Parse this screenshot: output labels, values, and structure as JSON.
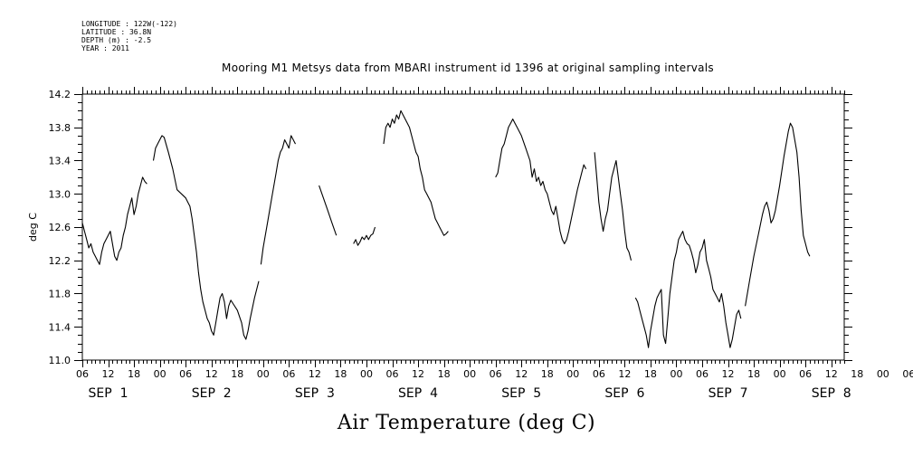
{
  "meta": {
    "longitude": "LONGITUDE : 122W(-122)",
    "latitude": "LATITUDE : 36.8N",
    "depth": "DEPTH (m) : -2.5",
    "year": "YEAR : 2011"
  },
  "chart_data": {
    "type": "line",
    "title": "Mooring M1 Metsys data from MBARI instrument id 1396 at original sampling intervals",
    "xlabel": "Air Temperature (deg C)",
    "ylabel": "deg C",
    "ylim": [
      11.0,
      14.2
    ],
    "yticks": [
      "11.0",
      "11.4",
      "11.8",
      "12.2",
      "12.6",
      "13.0",
      "13.4",
      "13.8",
      "14.2"
    ],
    "xlim": [
      6,
      183
    ],
    "hour_tick_labels": [
      "06",
      "12",
      "18",
      "00",
      "06",
      "12",
      "18",
      "00",
      "06",
      "12",
      "18",
      "00",
      "06",
      "12",
      "18",
      "00",
      "06",
      "12",
      "18",
      "00",
      "06",
      "12",
      "18",
      "00",
      "06",
      "12",
      "18",
      "00",
      "06",
      "12",
      "18",
      "00",
      "06"
    ],
    "day_labels": [
      {
        "text": "SEP  1",
        "hour": 12
      },
      {
        "text": "SEP  2",
        "hour": 36
      },
      {
        "text": "SEP  3",
        "hour": 60
      },
      {
        "text": "SEP  4",
        "hour": 84
      },
      {
        "text": "SEP  5",
        "hour": 108
      },
      {
        "text": "SEP  6",
        "hour": 132
      },
      {
        "text": "SEP  7",
        "hour": 156
      },
      {
        "text": "SEP  8",
        "hour": 180
      }
    ],
    "grid": false,
    "series": [
      {
        "segments": [
          [
            [
              6,
              12.65
            ],
            [
              6.5,
              12.55
            ],
            [
              7,
              12.45
            ],
            [
              7.5,
              12.35
            ],
            [
              8,
              12.4
            ],
            [
              8.5,
              12.3
            ],
            [
              9,
              12.25
            ],
            [
              9.5,
              12.2
            ],
            [
              10,
              12.15
            ],
            [
              10.5,
              12.3
            ],
            [
              11,
              12.4
            ],
            [
              11.5,
              12.45
            ],
            [
              12,
              12.5
            ],
            [
              12.5,
              12.55
            ],
            [
              13,
              12.4
            ],
            [
              13.5,
              12.25
            ],
            [
              14,
              12.2
            ],
            [
              14.5,
              12.3
            ],
            [
              15,
              12.35
            ],
            [
              15.5,
              12.5
            ],
            [
              16,
              12.6
            ],
            [
              16.5,
              12.75
            ],
            [
              17,
              12.85
            ],
            [
              17.5,
              12.95
            ],
            [
              18,
              12.75
            ],
            [
              18.5,
              12.85
            ],
            [
              19,
              13.0
            ],
            [
              19.5,
              13.1
            ],
            [
              20,
              13.2
            ],
            [
              20.5,
              13.15
            ],
            [
              21,
              13.12
            ]
          ],
          [
            [
              22.5,
              13.4
            ],
            [
              23,
              13.55
            ],
            [
              23.5,
              13.6
            ],
            [
              24,
              13.65
            ],
            [
              24.5,
              13.7
            ],
            [
              25,
              13.68
            ],
            [
              26,
              13.5
            ],
            [
              27,
              13.3
            ],
            [
              28,
              13.05
            ],
            [
              29,
              13.0
            ],
            [
              30,
              12.95
            ],
            [
              30.5,
              12.9
            ],
            [
              31,
              12.85
            ],
            [
              31.5,
              12.7
            ],
            [
              32,
              12.5
            ],
            [
              32.5,
              12.3
            ],
            [
              33,
              12.05
            ],
            [
              33.5,
              11.85
            ],
            [
              34,
              11.7
            ],
            [
              34.5,
              11.6
            ],
            [
              35,
              11.5
            ],
            [
              35.5,
              11.45
            ],
            [
              36,
              11.35
            ],
            [
              36.5,
              11.3
            ],
            [
              37,
              11.45
            ],
            [
              37.5,
              11.6
            ],
            [
              38,
              11.75
            ],
            [
              38.5,
              11.8
            ],
            [
              39,
              11.7
            ],
            [
              39.5,
              11.5
            ],
            [
              40,
              11.65
            ],
            [
              40.5,
              11.72
            ],
            [
              41,
              11.68
            ],
            [
              42,
              11.6
            ],
            [
              43,
              11.45
            ],
            [
              43.5,
              11.3
            ],
            [
              44,
              11.25
            ],
            [
              44.5,
              11.35
            ],
            [
              45,
              11.5
            ],
            [
              46,
              11.75
            ],
            [
              47,
              11.95
            ]
          ],
          [
            [
              47.5,
              12.15
            ],
            [
              48,
              12.35
            ],
            [
              49,
              12.65
            ],
            [
              50,
              12.95
            ],
            [
              51,
              13.25
            ],
            [
              51.5,
              13.4
            ],
            [
              52,
              13.5
            ],
            [
              52.5,
              13.55
            ],
            [
              53,
              13.65
            ],
            [
              53.5,
              13.6
            ],
            [
              54,
              13.55
            ],
            [
              54.5,
              13.7
            ],
            [
              55,
              13.65
            ],
            [
              55.5,
              13.6
            ]
          ],
          [
            [
              61,
              13.1
            ],
            [
              62,
              12.95
            ],
            [
              63,
              12.8
            ],
            [
              64,
              12.65
            ],
            [
              65,
              12.5
            ]
          ],
          [
            [
              69,
              12.4
            ],
            [
              69.5,
              12.45
            ],
            [
              70,
              12.38
            ],
            [
              70.5,
              12.42
            ],
            [
              71,
              12.48
            ],
            [
              71.5,
              12.45
            ],
            [
              72,
              12.5
            ],
            [
              72.5,
              12.45
            ],
            [
              73,
              12.5
            ],
            [
              73.5,
              12.52
            ],
            [
              74,
              12.6
            ]
          ],
          [
            [
              76,
              13.6
            ],
            [
              76.5,
              13.8
            ],
            [
              77,
              13.85
            ],
            [
              77.5,
              13.8
            ],
            [
              78,
              13.9
            ],
            [
              78.5,
              13.85
            ],
            [
              79,
              13.95
            ],
            [
              79.5,
              13.9
            ],
            [
              80,
              14.0
            ],
            [
              80.5,
              13.95
            ],
            [
              81,
              13.9
            ],
            [
              81.5,
              13.85
            ],
            [
              82,
              13.8
            ],
            [
              82.5,
              13.7
            ],
            [
              83,
              13.6
            ],
            [
              83.5,
              13.5
            ],
            [
              84,
              13.45
            ],
            [
              84.5,
              13.3
            ],
            [
              85,
              13.2
            ],
            [
              85.5,
              13.05
            ],
            [
              86,
              13.0
            ],
            [
              86.5,
              12.95
            ],
            [
              87,
              12.9
            ],
            [
              87.5,
              12.8
            ],
            [
              88,
              12.7
            ],
            [
              88.5,
              12.65
            ],
            [
              89,
              12.6
            ],
            [
              89.5,
              12.55
            ],
            [
              90,
              12.5
            ],
            [
              90.5,
              12.52
            ],
            [
              91,
              12.55
            ]
          ],
          [
            [
              102,
              13.2
            ],
            [
              102.5,
              13.25
            ],
            [
              103,
              13.4
            ],
            [
              103.5,
              13.55
            ],
            [
              104,
              13.6
            ],
            [
              104.5,
              13.7
            ],
            [
              105,
              13.8
            ],
            [
              105.5,
              13.85
            ],
            [
              106,
              13.9
            ],
            [
              106.5,
              13.85
            ],
            [
              107,
              13.8
            ],
            [
              108,
              13.7
            ],
            [
              109,
              13.55
            ],
            [
              110,
              13.4
            ],
            [
              110.5,
              13.2
            ],
            [
              111,
              13.3
            ],
            [
              111.5,
              13.15
            ],
            [
              112,
              13.2
            ],
            [
              112.5,
              13.1
            ],
            [
              113,
              13.15
            ],
            [
              113.5,
              13.05
            ],
            [
              114,
              13.0
            ],
            [
              114.5,
              12.9
            ],
            [
              115,
              12.8
            ],
            [
              115.5,
              12.75
            ],
            [
              116,
              12.85
            ],
            [
              116.5,
              12.7
            ],
            [
              117,
              12.55
            ],
            [
              117.5,
              12.45
            ],
            [
              118,
              12.4
            ],
            [
              118.5,
              12.45
            ],
            [
              119,
              12.55
            ],
            [
              120,
              12.8
            ],
            [
              121,
              13.05
            ],
            [
              122,
              13.25
            ],
            [
              122.5,
              13.35
            ],
            [
              123,
              13.3
            ]
          ],
          [
            [
              125,
              13.5
            ],
            [
              125.5,
              13.2
            ],
            [
              126,
              12.9
            ],
            [
              126.5,
              12.7
            ],
            [
              127,
              12.55
            ],
            [
              127.5,
              12.7
            ],
            [
              128,
              12.8
            ],
            [
              128.5,
              13.0
            ],
            [
              129,
              13.2
            ],
            [
              129.5,
              13.3
            ],
            [
              130,
              13.4
            ],
            [
              130.5,
              13.2
            ],
            [
              131,
              13.0
            ],
            [
              131.5,
              12.8
            ],
            [
              132,
              12.55
            ],
            [
              132.5,
              12.35
            ],
            [
              133,
              12.3
            ],
            [
              133.5,
              12.2
            ]
          ],
          [
            [
              134.5,
              11.75
            ],
            [
              135,
              11.7
            ],
            [
              135.5,
              11.6
            ],
            [
              136,
              11.5
            ],
            [
              136.5,
              11.4
            ],
            [
              137,
              11.3
            ],
            [
              137.5,
              11.15
            ],
            [
              138,
              11.35
            ],
            [
              138.5,
              11.5
            ],
            [
              139,
              11.65
            ],
            [
              139.5,
              11.75
            ],
            [
              140,
              11.8
            ],
            [
              140.5,
              11.85
            ],
            [
              141,
              11.3
            ],
            [
              141.5,
              11.2
            ],
            [
              142,
              11.5
            ],
            [
              142.5,
              11.8
            ],
            [
              143,
              12.0
            ],
            [
              143.5,
              12.2
            ],
            [
              144,
              12.3
            ],
            [
              144.5,
              12.45
            ],
            [
              145,
              12.5
            ],
            [
              145.5,
              12.55
            ],
            [
              146,
              12.45
            ],
            [
              146.5,
              12.4
            ],
            [
              147,
              12.38
            ],
            [
              147.5,
              12.3
            ],
            [
              148,
              12.2
            ],
            [
              148.5,
              12.05
            ],
            [
              149,
              12.15
            ],
            [
              149.5,
              12.3
            ],
            [
              150,
              12.35
            ],
            [
              150.5,
              12.45
            ],
            [
              151,
              12.2
            ],
            [
              151.5,
              12.1
            ],
            [
              152,
              12.0
            ],
            [
              152.5,
              11.85
            ],
            [
              153,
              11.8
            ],
            [
              153.5,
              11.75
            ],
            [
              154,
              11.7
            ],
            [
              154.5,
              11.8
            ],
            [
              155,
              11.65
            ],
            [
              155.5,
              11.45
            ],
            [
              156,
              11.3
            ],
            [
              156.5,
              11.15
            ],
            [
              157,
              11.25
            ],
            [
              157.5,
              11.4
            ],
            [
              158,
              11.55
            ],
            [
              158.5,
              11.6
            ],
            [
              159,
              11.5
            ]
          ],
          [
            [
              160,
              11.65
            ],
            [
              161,
              11.95
            ],
            [
              162,
              12.25
            ],
            [
              163,
              12.5
            ],
            [
              164,
              12.75
            ],
            [
              164.5,
              12.85
            ],
            [
              165,
              12.9
            ],
            [
              165.5,
              12.8
            ],
            [
              166,
              12.65
            ],
            [
              166.5,
              12.7
            ],
            [
              167,
              12.8
            ],
            [
              168,
              13.1
            ],
            [
              169,
              13.45
            ],
            [
              170,
              13.75
            ],
            [
              170.5,
              13.85
            ],
            [
              171,
              13.8
            ],
            [
              172,
              13.5
            ],
            [
              172.5,
              13.2
            ],
            [
              173,
              12.8
            ],
            [
              173.5,
              12.5
            ],
            [
              174,
              12.4
            ],
            [
              174.5,
              12.3
            ],
            [
              175,
              12.25
            ]
          ]
        ]
      }
    ]
  }
}
